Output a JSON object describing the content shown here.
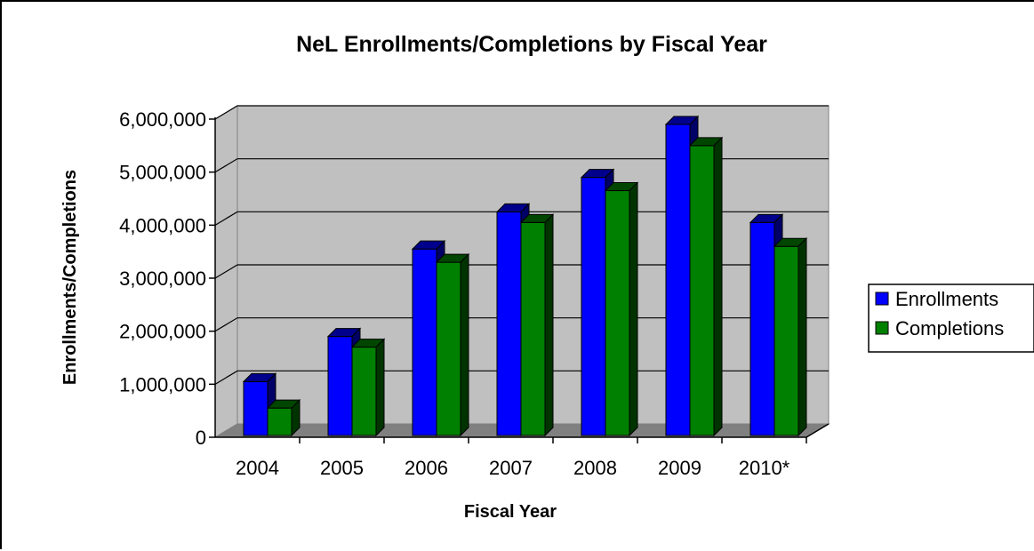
{
  "chart_data": {
    "type": "bar",
    "title": "NeL Enrollments/Completions by Fiscal Year",
    "xlabel": "Fiscal Year",
    "ylabel": "Enrollments/Completions",
    "categories": [
      "2004",
      "2005",
      "2006",
      "2007",
      "2008",
      "2009",
      "2010*"
    ],
    "series": [
      {
        "name": "Enrollments",
        "values": [
          1050000,
          1900000,
          3550000,
          4250000,
          4900000,
          5900000,
          4050000
        ],
        "color": "#0000ff"
      },
      {
        "name": "Completions",
        "values": [
          550000,
          1700000,
          3300000,
          4050000,
          4650000,
          5500000,
          3600000
        ],
        "color": "#008000"
      }
    ],
    "ylim": [
      0,
      6000000
    ],
    "yticks": [
      0,
      1000000,
      2000000,
      3000000,
      4000000,
      5000000,
      6000000
    ],
    "ytick_labels": [
      "0",
      "1,000,000",
      "2,000,000",
      "3,000,000",
      "4,000,000",
      "5,000,000",
      "6,000,000"
    ],
    "grid": true,
    "legend_position": "right",
    "plot_background": "#c0c0c0",
    "floor_color": "#808080"
  }
}
